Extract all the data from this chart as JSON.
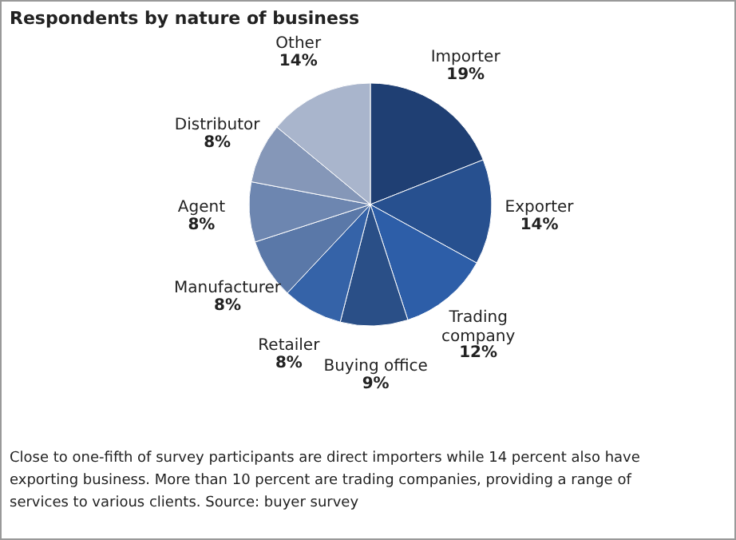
{
  "chart_data": {
    "type": "pie",
    "title": "Respondents by nature of business",
    "categories": [
      "Importer",
      "Exporter",
      "Trading company",
      "Buying office",
      "Retailer",
      "Manufacturer",
      "Agent",
      "Distributor",
      "Other"
    ],
    "values": [
      19,
      14,
      12,
      9,
      8,
      8,
      8,
      8,
      14
    ],
    "value_labels": [
      "19%",
      "14%",
      "12%",
      "9%",
      "8%",
      "8%",
      "8%",
      "8%",
      "14%"
    ],
    "colors": [
      "#1f3f73",
      "#27508f",
      "#2d5ea8",
      "#2a4f87",
      "#3563a8",
      "#5a78a8",
      "#6d86b0",
      "#8597b8",
      "#a9b5cc"
    ],
    "annotations": [
      "Close to one-fifth of survey participants are direct importers while 14 percent also have exporting business. More than 10 percent are trading companies, providing a range of services to various clients. Source: buyer survey"
    ]
  }
}
